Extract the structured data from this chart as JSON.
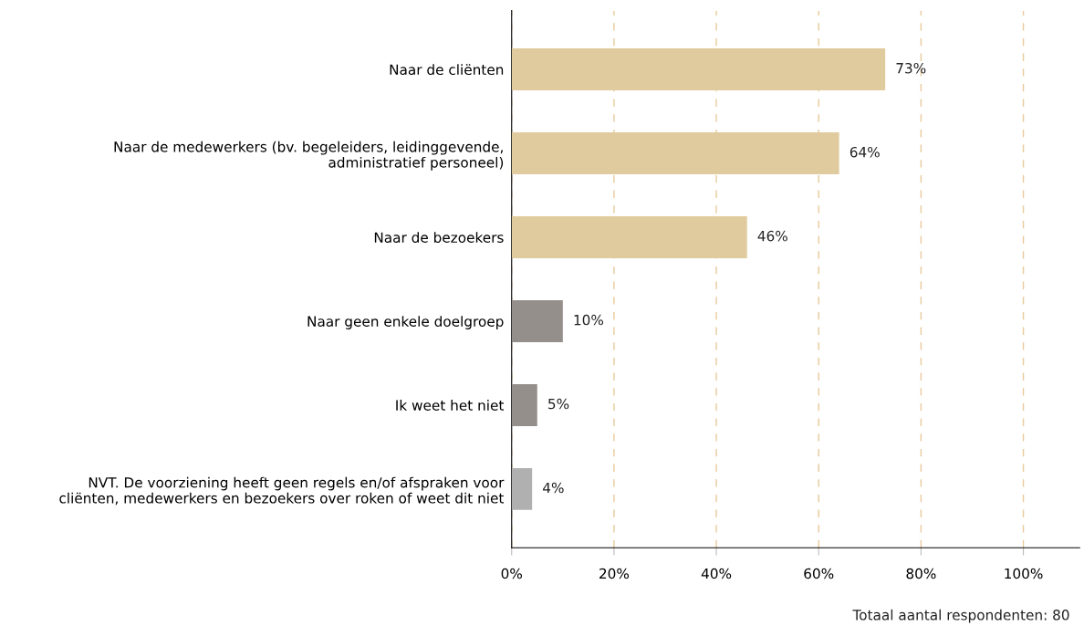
{
  "chart_data": {
    "type": "bar",
    "orientation": "horizontal",
    "categories": [
      "Naar de cliënten",
      "Naar de medewerkers (bv. begeleiders, leidinggevende,\nadministratief personeel)",
      "Naar de bezoekers",
      "Naar geen enkele doelgroep",
      "Ik weet het niet",
      "NVT. De voorziening heeft geen regels en/of afspraken voor\ncliënten, medewerkers en bezoekers over roken of weet dit niet"
    ],
    "values": [
      73,
      64,
      46,
      10,
      5,
      4
    ],
    "colors": [
      "#e0cb9e",
      "#e0cb9e",
      "#e0cb9e",
      "#958f8c",
      "#958f8c",
      "#b0b0b0"
    ],
    "value_labels": [
      "73%",
      "64%",
      "46%",
      "10%",
      "5%",
      "4%"
    ],
    "xlim": [
      0,
      111
    ],
    "xticks": [
      {
        "value": 0,
        "label": "0%"
      },
      {
        "value": 20,
        "label": "20%"
      },
      {
        "value": 40,
        "label": "40%"
      },
      {
        "value": 60,
        "label": "60%"
      },
      {
        "value": 80,
        "label": "80%"
      },
      {
        "value": 100,
        "label": "100%"
      }
    ],
    "grid": "x",
    "annotations": [
      "Totaal aantal respondenten: 80"
    ]
  }
}
